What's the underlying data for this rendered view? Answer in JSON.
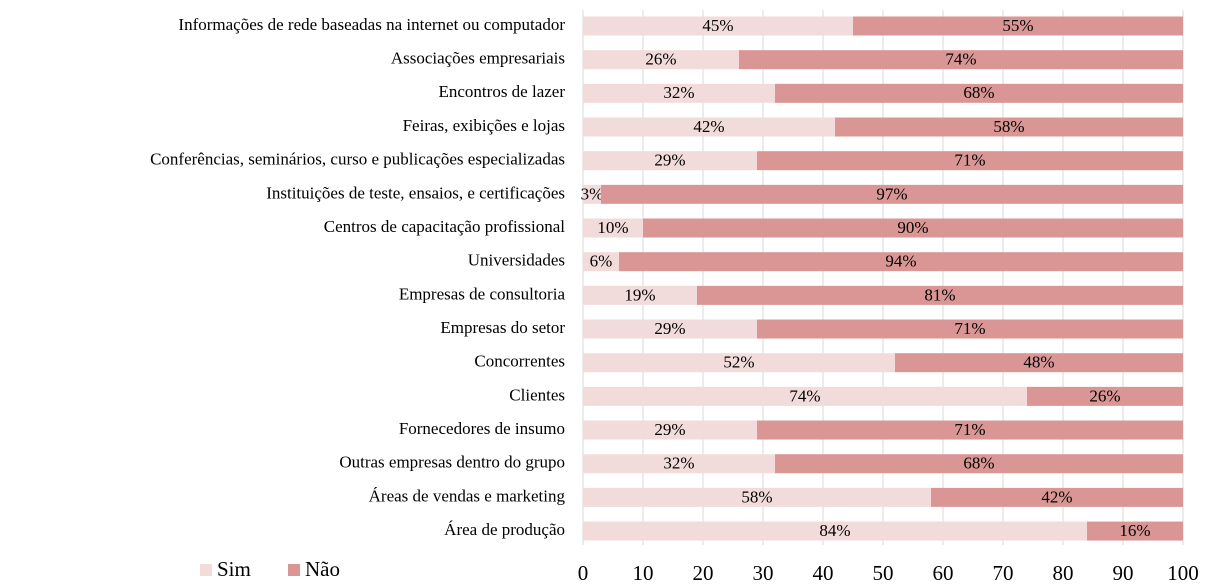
{
  "chart_data": {
    "type": "stacked_barh",
    "categories": [
      "Informações de rede baseadas na internet ou computador",
      "Associações empresariais",
      "Encontros de lazer",
      "Feiras, exibições e lojas",
      "Conferências, seminários, curso e publicações especializadas",
      "Instituições de teste, ensaios, e certificações",
      "Centros de capacitação profissional",
      "Universidades",
      "Empresas de consultoria",
      "Empresas do setor",
      "Concorrentes",
      "Clientes",
      "Fornecedores de insumo",
      "Outras empresas dentro do grupo",
      "Áreas de vendas e marketing",
      "Área de produção"
    ],
    "series": [
      {
        "name": "Sim",
        "color": "#f2dcdb",
        "values": [
          45,
          26,
          32,
          42,
          29,
          3,
          10,
          6,
          19,
          29,
          52,
          74,
          29,
          32,
          58,
          84
        ],
        "value_labels": [
          "45%",
          "26%",
          "32%",
          "42%",
          "29%",
          "3%",
          "10%",
          "6%",
          "19%",
          "29%",
          "52%",
          "74%",
          "29%",
          "32%",
          "58%",
          "84%"
        ]
      },
      {
        "name": "Não",
        "color": "#d99694",
        "values": [
          55,
          74,
          68,
          58,
          71,
          97,
          90,
          94,
          81,
          71,
          48,
          26,
          71,
          68,
          42,
          16
        ],
        "value_labels": [
          "55%",
          "74%",
          "68%",
          "58%",
          "71%",
          "97%",
          "90%",
          "94%",
          "81%",
          "71%",
          "48%",
          "26%",
          "71%",
          "68%",
          "42%",
          "16%"
        ]
      }
    ],
    "xlim": [
      0,
      100
    ],
    "xticks": [
      0,
      10,
      20,
      30,
      40,
      50,
      60,
      70,
      80,
      90,
      100
    ],
    "grid": true,
    "legend": "bottom-left"
  }
}
